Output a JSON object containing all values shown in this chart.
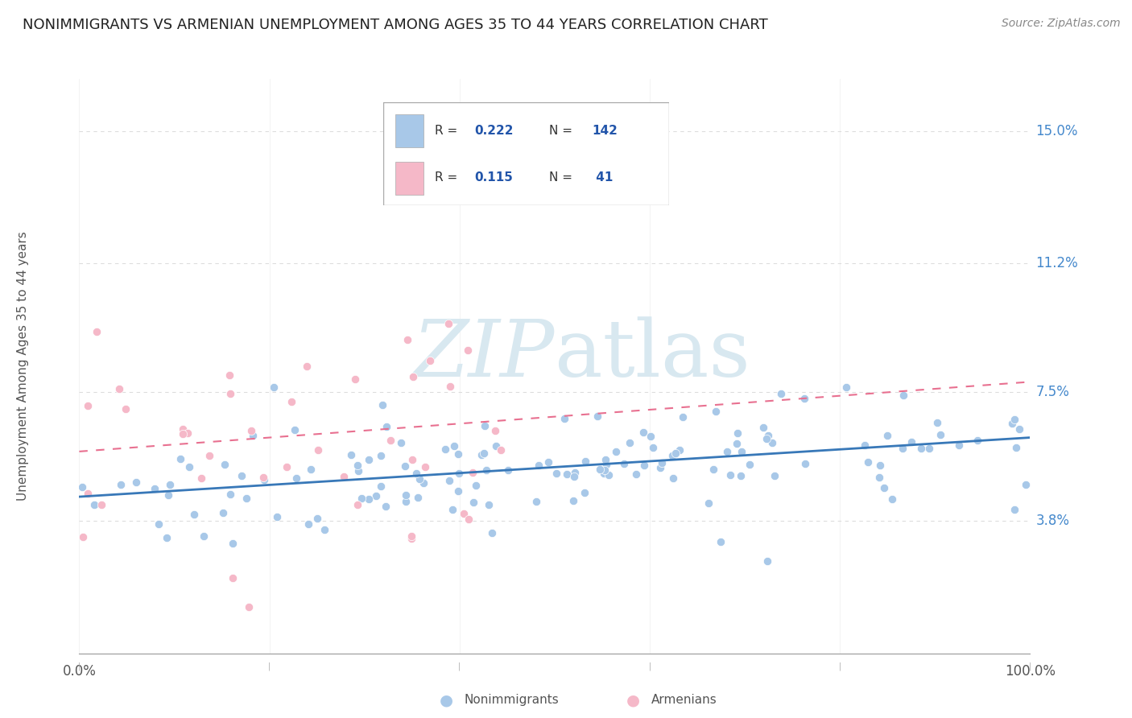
{
  "title": "NONIMMIGRANTS VS ARMENIAN UNEMPLOYMENT AMONG AGES 35 TO 44 YEARS CORRELATION CHART",
  "source": "Source: ZipAtlas.com",
  "ylabel": "Unemployment Among Ages 35 to 44 years",
  "ytick_labels": [
    "3.8%",
    "7.5%",
    "11.2%",
    "15.0%"
  ],
  "ytick_values": [
    3.8,
    7.5,
    11.2,
    15.0
  ],
  "xtick_labels": [
    "0.0%",
    "100.0%"
  ],
  "color_blue": "#a8c8e8",
  "color_blue_line": "#3878b8",
  "color_pink": "#f5b8c8",
  "color_pink_line": "#e87090",
  "color_blue_text": "#4488cc",
  "color_pink_text": "#cc4488",
  "color_legend_text": "#2255aa",
  "watermark_color": "#d8e8f0",
  "background_color": "#ffffff",
  "grid_color": "#dddddd",
  "ylim_min": 0.0,
  "ylim_max": 16.5,
  "xlim_min": 0.0,
  "xlim_max": 100.0,
  "legend_r1": "0.222",
  "legend_n1": "142",
  "legend_r2": "0.115",
  "legend_n2": "41",
  "blue_trend_y0": 4.5,
  "blue_trend_y1": 6.2,
  "pink_trend_y0": 5.8,
  "pink_trend_y1": 7.8,
  "marker_size": 55
}
